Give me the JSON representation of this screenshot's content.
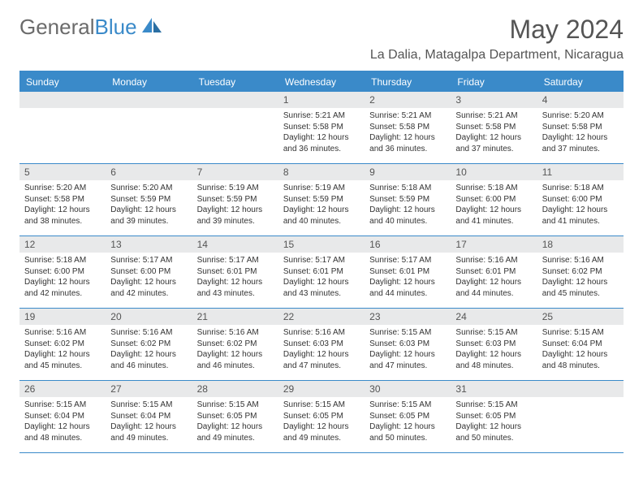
{
  "logo": {
    "text_gray": "General",
    "text_blue": "Blue"
  },
  "title": "May 2024",
  "location": "La Dalia, Matagalpa Department, Nicaragua",
  "colors": {
    "header_bg": "#3a8ac9",
    "daynum_bg": "#e8e9ea",
    "text": "#333333",
    "title_text": "#555555",
    "page_bg": "#ffffff"
  },
  "day_names": [
    "Sunday",
    "Monday",
    "Tuesday",
    "Wednesday",
    "Thursday",
    "Friday",
    "Saturday"
  ],
  "weeks": [
    [
      {
        "day": "",
        "sunrise": "",
        "sunset": "",
        "daylight": ""
      },
      {
        "day": "",
        "sunrise": "",
        "sunset": "",
        "daylight": ""
      },
      {
        "day": "",
        "sunrise": "",
        "sunset": "",
        "daylight": ""
      },
      {
        "day": "1",
        "sunrise": "Sunrise: 5:21 AM",
        "sunset": "Sunset: 5:58 PM",
        "daylight": "Daylight: 12 hours and 36 minutes."
      },
      {
        "day": "2",
        "sunrise": "Sunrise: 5:21 AM",
        "sunset": "Sunset: 5:58 PM",
        "daylight": "Daylight: 12 hours and 36 minutes."
      },
      {
        "day": "3",
        "sunrise": "Sunrise: 5:21 AM",
        "sunset": "Sunset: 5:58 PM",
        "daylight": "Daylight: 12 hours and 37 minutes."
      },
      {
        "day": "4",
        "sunrise": "Sunrise: 5:20 AM",
        "sunset": "Sunset: 5:58 PM",
        "daylight": "Daylight: 12 hours and 37 minutes."
      }
    ],
    [
      {
        "day": "5",
        "sunrise": "Sunrise: 5:20 AM",
        "sunset": "Sunset: 5:58 PM",
        "daylight": "Daylight: 12 hours and 38 minutes."
      },
      {
        "day": "6",
        "sunrise": "Sunrise: 5:20 AM",
        "sunset": "Sunset: 5:59 PM",
        "daylight": "Daylight: 12 hours and 39 minutes."
      },
      {
        "day": "7",
        "sunrise": "Sunrise: 5:19 AM",
        "sunset": "Sunset: 5:59 PM",
        "daylight": "Daylight: 12 hours and 39 minutes."
      },
      {
        "day": "8",
        "sunrise": "Sunrise: 5:19 AM",
        "sunset": "Sunset: 5:59 PM",
        "daylight": "Daylight: 12 hours and 40 minutes."
      },
      {
        "day": "9",
        "sunrise": "Sunrise: 5:18 AM",
        "sunset": "Sunset: 5:59 PM",
        "daylight": "Daylight: 12 hours and 40 minutes."
      },
      {
        "day": "10",
        "sunrise": "Sunrise: 5:18 AM",
        "sunset": "Sunset: 6:00 PM",
        "daylight": "Daylight: 12 hours and 41 minutes."
      },
      {
        "day": "11",
        "sunrise": "Sunrise: 5:18 AM",
        "sunset": "Sunset: 6:00 PM",
        "daylight": "Daylight: 12 hours and 41 minutes."
      }
    ],
    [
      {
        "day": "12",
        "sunrise": "Sunrise: 5:18 AM",
        "sunset": "Sunset: 6:00 PM",
        "daylight": "Daylight: 12 hours and 42 minutes."
      },
      {
        "day": "13",
        "sunrise": "Sunrise: 5:17 AM",
        "sunset": "Sunset: 6:00 PM",
        "daylight": "Daylight: 12 hours and 42 minutes."
      },
      {
        "day": "14",
        "sunrise": "Sunrise: 5:17 AM",
        "sunset": "Sunset: 6:01 PM",
        "daylight": "Daylight: 12 hours and 43 minutes."
      },
      {
        "day": "15",
        "sunrise": "Sunrise: 5:17 AM",
        "sunset": "Sunset: 6:01 PM",
        "daylight": "Daylight: 12 hours and 43 minutes."
      },
      {
        "day": "16",
        "sunrise": "Sunrise: 5:17 AM",
        "sunset": "Sunset: 6:01 PM",
        "daylight": "Daylight: 12 hours and 44 minutes."
      },
      {
        "day": "17",
        "sunrise": "Sunrise: 5:16 AM",
        "sunset": "Sunset: 6:01 PM",
        "daylight": "Daylight: 12 hours and 44 minutes."
      },
      {
        "day": "18",
        "sunrise": "Sunrise: 5:16 AM",
        "sunset": "Sunset: 6:02 PM",
        "daylight": "Daylight: 12 hours and 45 minutes."
      }
    ],
    [
      {
        "day": "19",
        "sunrise": "Sunrise: 5:16 AM",
        "sunset": "Sunset: 6:02 PM",
        "daylight": "Daylight: 12 hours and 45 minutes."
      },
      {
        "day": "20",
        "sunrise": "Sunrise: 5:16 AM",
        "sunset": "Sunset: 6:02 PM",
        "daylight": "Daylight: 12 hours and 46 minutes."
      },
      {
        "day": "21",
        "sunrise": "Sunrise: 5:16 AM",
        "sunset": "Sunset: 6:02 PM",
        "daylight": "Daylight: 12 hours and 46 minutes."
      },
      {
        "day": "22",
        "sunrise": "Sunrise: 5:16 AM",
        "sunset": "Sunset: 6:03 PM",
        "daylight": "Daylight: 12 hours and 47 minutes."
      },
      {
        "day": "23",
        "sunrise": "Sunrise: 5:15 AM",
        "sunset": "Sunset: 6:03 PM",
        "daylight": "Daylight: 12 hours and 47 minutes."
      },
      {
        "day": "24",
        "sunrise": "Sunrise: 5:15 AM",
        "sunset": "Sunset: 6:03 PM",
        "daylight": "Daylight: 12 hours and 48 minutes."
      },
      {
        "day": "25",
        "sunrise": "Sunrise: 5:15 AM",
        "sunset": "Sunset: 6:04 PM",
        "daylight": "Daylight: 12 hours and 48 minutes."
      }
    ],
    [
      {
        "day": "26",
        "sunrise": "Sunrise: 5:15 AM",
        "sunset": "Sunset: 6:04 PM",
        "daylight": "Daylight: 12 hours and 48 minutes."
      },
      {
        "day": "27",
        "sunrise": "Sunrise: 5:15 AM",
        "sunset": "Sunset: 6:04 PM",
        "daylight": "Daylight: 12 hours and 49 minutes."
      },
      {
        "day": "28",
        "sunrise": "Sunrise: 5:15 AM",
        "sunset": "Sunset: 6:05 PM",
        "daylight": "Daylight: 12 hours and 49 minutes."
      },
      {
        "day": "29",
        "sunrise": "Sunrise: 5:15 AM",
        "sunset": "Sunset: 6:05 PM",
        "daylight": "Daylight: 12 hours and 49 minutes."
      },
      {
        "day": "30",
        "sunrise": "Sunrise: 5:15 AM",
        "sunset": "Sunset: 6:05 PM",
        "daylight": "Daylight: 12 hours and 50 minutes."
      },
      {
        "day": "31",
        "sunrise": "Sunrise: 5:15 AM",
        "sunset": "Sunset: 6:05 PM",
        "daylight": "Daylight: 12 hours and 50 minutes."
      },
      {
        "day": "",
        "sunrise": "",
        "sunset": "",
        "daylight": ""
      }
    ]
  ]
}
